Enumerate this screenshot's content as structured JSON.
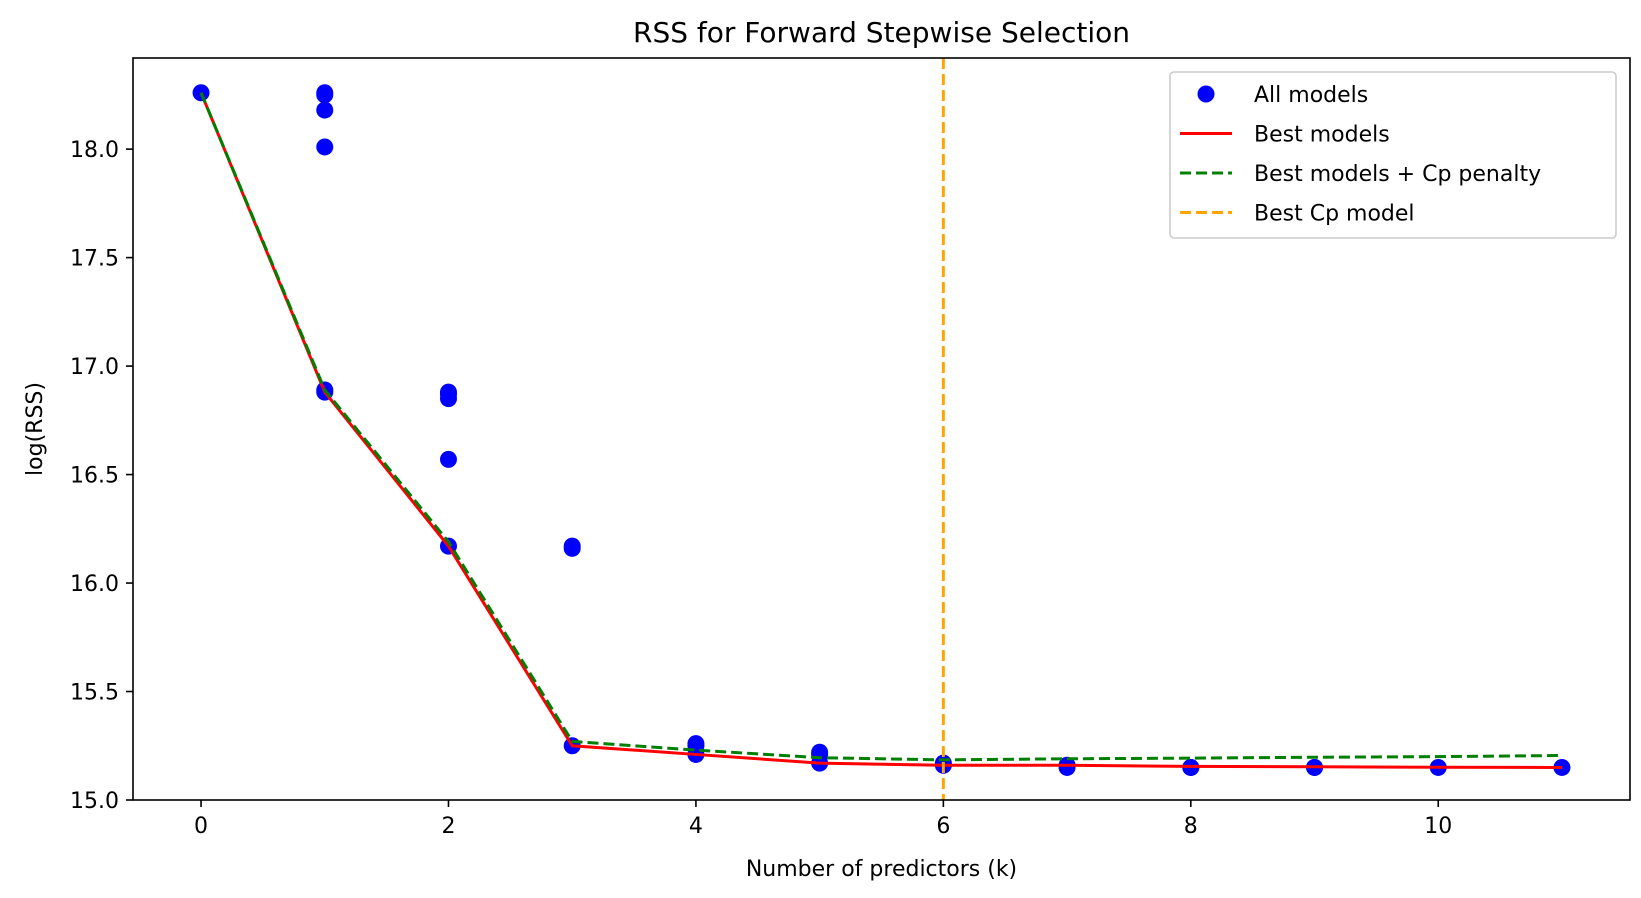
{
  "chart_data": {
    "type": "scatter",
    "title": "RSS for Forward Stepwise Selection",
    "xlabel": "Number of predictors (k)",
    "ylabel": "log(RSS)",
    "xlim": [
      -0.55,
      11.55
    ],
    "ylim": [
      15.0,
      18.42
    ],
    "x_ticks": [
      0,
      2,
      4,
      6,
      8,
      10
    ],
    "y_ticks": [
      15.0,
      15.5,
      16.0,
      16.5,
      17.0,
      17.5,
      18.0
    ],
    "y_tick_labels": [
      "15.0",
      "15.5",
      "16.0",
      "16.5",
      "17.0",
      "17.5",
      "18.0"
    ],
    "grid": false,
    "legend_position": "upper right",
    "series": [
      {
        "name": "All models",
        "kind": "scatter",
        "color": "#0000ff",
        "points": [
          [
            0,
            18.26
          ],
          [
            1,
            18.26
          ],
          [
            1,
            18.25
          ],
          [
            1,
            18.18
          ],
          [
            1,
            18.01
          ],
          [
            1,
            16.89
          ],
          [
            1,
            16.88
          ],
          [
            2,
            16.88
          ],
          [
            2,
            16.87
          ],
          [
            2,
            16.85
          ],
          [
            2,
            16.57
          ],
          [
            2,
            16.17
          ],
          [
            3,
            16.17
          ],
          [
            3,
            16.16
          ],
          [
            3,
            15.25
          ],
          [
            4,
            15.26
          ],
          [
            4,
            15.25
          ],
          [
            4,
            15.21
          ],
          [
            5,
            15.22
          ],
          [
            5,
            15.21
          ],
          [
            5,
            15.17
          ],
          [
            6,
            15.17
          ],
          [
            6,
            15.16
          ],
          [
            7,
            15.16
          ],
          [
            7,
            15.15
          ],
          [
            8,
            15.15
          ],
          [
            8,
            15.15
          ],
          [
            9,
            15.15
          ],
          [
            9,
            15.15
          ],
          [
            10,
            15.15
          ],
          [
            11,
            15.15
          ]
        ]
      },
      {
        "name": "Best models",
        "kind": "line",
        "color": "#ff0000",
        "dash": "solid",
        "x": [
          0,
          1,
          2,
          3,
          4,
          5,
          6,
          7,
          8,
          9,
          10,
          11
        ],
        "y": [
          18.26,
          16.88,
          16.17,
          15.25,
          15.21,
          15.17,
          15.16,
          15.16,
          15.155,
          15.153,
          15.151,
          15.15
        ]
      },
      {
        "name": "Best models + Cp penalty",
        "kind": "line",
        "color": "#008000",
        "dash": "dashed",
        "x": [
          0,
          1,
          2,
          3,
          4,
          5,
          6,
          7,
          8,
          9,
          10,
          11
        ],
        "y": [
          18.26,
          16.89,
          16.19,
          15.27,
          15.23,
          15.195,
          15.185,
          15.19,
          15.193,
          15.197,
          15.2,
          15.205
        ]
      },
      {
        "name": "Best Cp model",
        "kind": "vline",
        "color": "#ffa500",
        "dash": "dashed",
        "x": 6
      }
    ]
  }
}
